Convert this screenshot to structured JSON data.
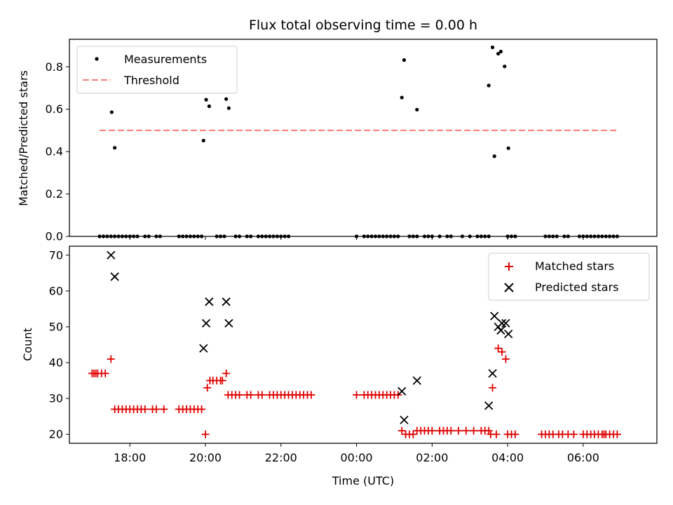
{
  "colors": {
    "measurement": "#000000",
    "threshold": "#ff7a7a",
    "matched": "#e00000",
    "predicted": "#000000",
    "axes": "#000000"
  },
  "chart_data": [
    {
      "type": "scatter",
      "title": "Flux total observing time = 0.00 h",
      "xlabel": "",
      "ylabel": "Matched/Predicted stars",
      "ylim": [
        0,
        0.93
      ],
      "yticks": [
        0.0,
        0.2,
        0.4,
        0.6,
        0.8
      ],
      "yticklabels": [
        "0.0",
        "0.2",
        "0.4",
        "0.6",
        "0.8"
      ],
      "x_unit": "hours since 2024-01-01 00:00 UTC (negative = previous evening)",
      "xlim": [
        -7.6,
        7.95
      ],
      "xticks": [
        -6,
        -4,
        -2,
        0,
        2,
        4,
        6
      ],
      "grid": false,
      "legend_position": "upper left",
      "legend": [
        "Measurements",
        "Threshold"
      ],
      "series": [
        {
          "name": "Threshold",
          "kind": "line",
          "x": [
            -6.8,
            6.9
          ],
          "y": [
            0.5,
            0.5
          ]
        },
        {
          "name": "Measurements",
          "kind": "scatter",
          "points": [
            [
              -6.8,
              0
            ],
            [
              -6.7,
              0
            ],
            [
              -6.6,
              0
            ],
            [
              -6.5,
              0
            ],
            [
              -6.4,
              0
            ],
            [
              -6.48,
              0.586
            ],
            [
              -6.4,
              0.418
            ],
            [
              -6.3,
              0
            ],
            [
              -6.2,
              0
            ],
            [
              -6.1,
              0
            ],
            [
              -6.0,
              0
            ],
            [
              -5.9,
              0
            ],
            [
              -5.8,
              0
            ],
            [
              -5.6,
              0
            ],
            [
              -5.5,
              0
            ],
            [
              -5.3,
              0
            ],
            [
              -5.2,
              0
            ],
            [
              -4.7,
              0
            ],
            [
              -4.6,
              0
            ],
            [
              -4.5,
              0
            ],
            [
              -4.4,
              0
            ],
            [
              -4.3,
              0
            ],
            [
              -4.2,
              0
            ],
            [
              -4.1,
              0
            ],
            [
              -4.05,
              0.452
            ],
            [
              -3.98,
              0.645
            ],
            [
              -3.9,
              0.614
            ],
            [
              -3.7,
              0
            ],
            [
              -3.6,
              0
            ],
            [
              -3.5,
              0
            ],
            [
              -3.45,
              0.648
            ],
            [
              -3.38,
              0.605
            ],
            [
              -3.2,
              0
            ],
            [
              -3.1,
              0
            ],
            [
              -2.9,
              0
            ],
            [
              -2.8,
              0
            ],
            [
              -2.6,
              0
            ],
            [
              -2.5,
              0
            ],
            [
              -2.4,
              0
            ],
            [
              -2.3,
              0
            ],
            [
              -2.2,
              0
            ],
            [
              -2.1,
              0
            ],
            [
              -2.0,
              0
            ],
            [
              -1.9,
              0
            ],
            [
              -1.8,
              0
            ],
            [
              0.0,
              0
            ],
            [
              0.2,
              0
            ],
            [
              0.3,
              0
            ],
            [
              0.4,
              0
            ],
            [
              0.5,
              0
            ],
            [
              0.6,
              0
            ],
            [
              0.7,
              0
            ],
            [
              0.8,
              0
            ],
            [
              0.9,
              0
            ],
            [
              1.0,
              0
            ],
            [
              1.1,
              0
            ],
            [
              1.2,
              0.655
            ],
            [
              1.26,
              0.832
            ],
            [
              1.6,
              0.598
            ],
            [
              1.4,
              0
            ],
            [
              1.5,
              0
            ],
            [
              1.6,
              0
            ],
            [
              1.8,
              0
            ],
            [
              1.9,
              0
            ],
            [
              2.0,
              0
            ],
            [
              2.2,
              0
            ],
            [
              2.4,
              0
            ],
            [
              2.5,
              0
            ],
            [
              2.8,
              0
            ],
            [
              3.0,
              0
            ],
            [
              3.2,
              0
            ],
            [
              3.3,
              0
            ],
            [
              3.4,
              0
            ],
            [
              3.5,
              0
            ],
            [
              3.5,
              0.712
            ],
            [
              3.6,
              0.892
            ],
            [
              3.65,
              0.378
            ],
            [
              3.75,
              0.862
            ],
            [
              3.82,
              0.872
            ],
            [
              3.92,
              0.802
            ],
            [
              4.02,
              0.416
            ],
            [
              4.0,
              0
            ],
            [
              4.1,
              0
            ],
            [
              4.2,
              0
            ],
            [
              5.0,
              0
            ],
            [
              5.1,
              0
            ],
            [
              5.2,
              0
            ],
            [
              5.3,
              0
            ],
            [
              5.5,
              0
            ],
            [
              5.6,
              0
            ],
            [
              5.9,
              0
            ],
            [
              6.0,
              0
            ],
            [
              6.1,
              0
            ],
            [
              6.2,
              0
            ],
            [
              6.3,
              0
            ],
            [
              6.4,
              0
            ],
            [
              6.5,
              0
            ],
            [
              6.6,
              0
            ],
            [
              6.7,
              0
            ],
            [
              6.8,
              0
            ],
            [
              6.9,
              0
            ]
          ]
        }
      ]
    },
    {
      "type": "scatter",
      "title": "",
      "xlabel": "Time (UTC)",
      "ylabel": "Count",
      "ylim": [
        17.5,
        72.5
      ],
      "yticks": [
        20,
        30,
        40,
        50,
        60,
        70
      ],
      "yticklabels": [
        "20",
        "30",
        "40",
        "50",
        "60",
        "70"
      ],
      "x_unit": "hours since 2024-01-01 00:00 UTC (negative = previous evening)",
      "xlim": [
        -7.6,
        7.95
      ],
      "xticks": [
        -6,
        -4,
        -2,
        0,
        2,
        4,
        6
      ],
      "xticklabels": [
        "18:00",
        "20:00",
        "22:00",
        "00:00",
        "02:00",
        "04:00",
        "06:00"
      ],
      "grid": false,
      "legend_position": "upper right",
      "legend": [
        "Matched stars",
        "Predicted stars"
      ],
      "series": [
        {
          "name": "Matched stars",
          "marker": "+",
          "points": [
            [
              -7.0,
              37
            ],
            [
              -6.95,
              37
            ],
            [
              -6.9,
              37
            ],
            [
              -6.85,
              37
            ],
            [
              -6.75,
              37
            ],
            [
              -6.65,
              37
            ],
            [
              -6.5,
              41
            ],
            [
              -6.4,
              27
            ],
            [
              -6.3,
              27
            ],
            [
              -6.2,
              27
            ],
            [
              -6.1,
              27
            ],
            [
              -6.0,
              27
            ],
            [
              -5.9,
              27
            ],
            [
              -5.8,
              27
            ],
            [
              -5.7,
              27
            ],
            [
              -5.6,
              27
            ],
            [
              -5.4,
              27
            ],
            [
              -5.3,
              27
            ],
            [
              -5.1,
              27
            ],
            [
              -4.7,
              27
            ],
            [
              -4.6,
              27
            ],
            [
              -4.5,
              27
            ],
            [
              -4.4,
              27
            ],
            [
              -4.3,
              27
            ],
            [
              -4.2,
              27
            ],
            [
              -4.1,
              27
            ],
            [
              -4.0,
              20
            ],
            [
              -3.95,
              33
            ],
            [
              -3.88,
              35
            ],
            [
              -3.8,
              35
            ],
            [
              -3.7,
              35
            ],
            [
              -3.6,
              35
            ],
            [
              -3.55,
              35
            ],
            [
              -3.45,
              37
            ],
            [
              -3.4,
              31
            ],
            [
              -3.3,
              31
            ],
            [
              -3.2,
              31
            ],
            [
              -3.1,
              31
            ],
            [
              -2.9,
              31
            ],
            [
              -2.8,
              31
            ],
            [
              -2.6,
              31
            ],
            [
              -2.5,
              31
            ],
            [
              -2.3,
              31
            ],
            [
              -2.2,
              31
            ],
            [
              -2.1,
              31
            ],
            [
              -2.0,
              31
            ],
            [
              -1.9,
              31
            ],
            [
              -1.8,
              31
            ],
            [
              -1.7,
              31
            ],
            [
              -1.6,
              31
            ],
            [
              -1.5,
              31
            ],
            [
              -1.4,
              31
            ],
            [
              -1.3,
              31
            ],
            [
              -1.2,
              31
            ],
            [
              0.0,
              31
            ],
            [
              0.2,
              31
            ],
            [
              0.3,
              31
            ],
            [
              0.4,
              31
            ],
            [
              0.5,
              31
            ],
            [
              0.6,
              31
            ],
            [
              0.7,
              31
            ],
            [
              0.8,
              31
            ],
            [
              0.9,
              31
            ],
            [
              1.0,
              31
            ],
            [
              1.1,
              31
            ],
            [
              1.2,
              21
            ],
            [
              1.3,
              20
            ],
            [
              1.4,
              20
            ],
            [
              1.5,
              20
            ],
            [
              1.6,
              21
            ],
            [
              1.7,
              21
            ],
            [
              1.8,
              21
            ],
            [
              1.9,
              21
            ],
            [
              2.0,
              21
            ],
            [
              2.2,
              21
            ],
            [
              2.3,
              21
            ],
            [
              2.4,
              21
            ],
            [
              2.5,
              21
            ],
            [
              2.7,
              21
            ],
            [
              2.9,
              21
            ],
            [
              3.1,
              21
            ],
            [
              3.3,
              21
            ],
            [
              3.4,
              21
            ],
            [
              3.5,
              21
            ],
            [
              3.55,
              20
            ],
            [
              3.6,
              33
            ],
            [
              3.7,
              20
            ],
            [
              3.75,
              44
            ],
            [
              3.85,
              43
            ],
            [
              3.95,
              41
            ],
            [
              4.0,
              20
            ],
            [
              4.1,
              20
            ],
            [
              4.2,
              20
            ],
            [
              4.9,
              20
            ],
            [
              5.0,
              20
            ],
            [
              5.1,
              20
            ],
            [
              5.2,
              20
            ],
            [
              5.35,
              20
            ],
            [
              5.45,
              20
            ],
            [
              5.6,
              20
            ],
            [
              5.75,
              20
            ],
            [
              6.0,
              20
            ],
            [
              6.1,
              20
            ],
            [
              6.2,
              20
            ],
            [
              6.3,
              20
            ],
            [
              6.4,
              20
            ],
            [
              6.5,
              20
            ],
            [
              6.55,
              20
            ],
            [
              6.6,
              20
            ],
            [
              6.7,
              20
            ],
            [
              6.8,
              20
            ],
            [
              6.9,
              20
            ]
          ]
        },
        {
          "name": "Predicted stars",
          "marker": "x",
          "points": [
            [
              -6.5,
              70
            ],
            [
              -6.4,
              64
            ],
            [
              -4.05,
              44
            ],
            [
              -3.98,
              51
            ],
            [
              -3.9,
              57
            ],
            [
              -3.45,
              57
            ],
            [
              -3.38,
              51
            ],
            [
              1.2,
              32
            ],
            [
              1.26,
              24
            ],
            [
              1.6,
              35
            ],
            [
              3.5,
              28
            ],
            [
              3.6,
              37
            ],
            [
              3.65,
              53
            ],
            [
              3.75,
              50
            ],
            [
              3.82,
              49
            ],
            [
              3.85,
              51
            ],
            [
              3.95,
              51
            ],
            [
              4.02,
              48
            ]
          ]
        }
      ]
    }
  ]
}
